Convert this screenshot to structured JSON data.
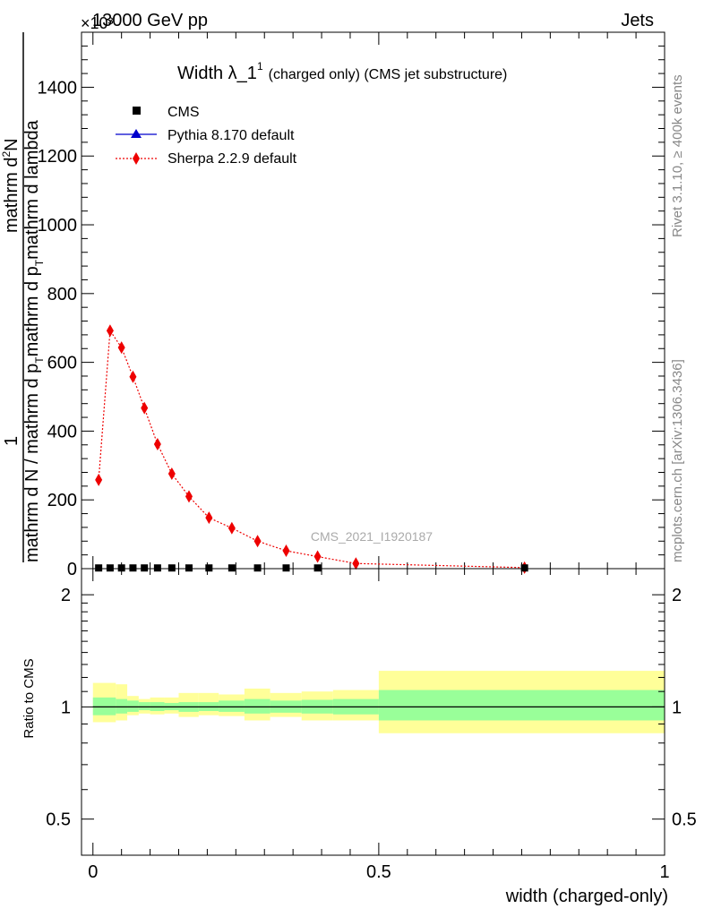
{
  "header": {
    "energy_label": "13000 GeV pp",
    "process_label": "Jets",
    "exponent_label": "×10³",
    "rivet_label": "Rivet 3.1.10, ≥ 400k events",
    "mcplots_label": "mcplots.cern.ch [arXiv:1306.3436]",
    "watermark": "CMS_2021_I1920187"
  },
  "chart_data": [
    {
      "type": "line",
      "title": "Width λ_1¹ (charged only) (CMS jet substructure)",
      "title_main": "Width λ_1",
      "title_sup": "1",
      "title_rest": "(charged only) (CMS jet substructure)",
      "ylabel_num_1": "1",
      "ylabel_num_2": "mathrm d",
      "ylabel_num_sup": "2",
      "ylabel_num_3": "N",
      "ylabel_den_1": "mathrm d N / mathrm d p",
      "ylabel_den_sub1": "T",
      "ylabel_den_2": "mathrm d p",
      "ylabel_den_sub2": "T",
      "ylabel_den_3": "mathrm d lambda",
      "xlabel": "",
      "ylim": [
        0,
        1560
      ],
      "xlim": [
        -0.02,
        1.0
      ],
      "yticks": [
        "0",
        "200",
        "400",
        "600",
        "800",
        "1000",
        "1200",
        "1400"
      ],
      "legend_position": "top-left",
      "series": [
        {
          "name": "CMS",
          "color": "#000000",
          "marker": "square",
          "x": [
            0.01,
            0.03,
            0.05,
            0.07,
            0.09,
            0.113,
            0.138,
            0.168,
            0.203,
            0.243,
            0.288,
            0.338,
            0.393,
            0.755
          ],
          "values": [
            2,
            2,
            2,
            2,
            2,
            2,
            2,
            2,
            2,
            2,
            2,
            2,
            2,
            2
          ]
        },
        {
          "name": "Pythia 8.170 default",
          "color": "#0000cc",
          "marker": "triangle",
          "x": [],
          "values": []
        },
        {
          "name": "Sherpa 2.2.9 default",
          "color": "#ee0000",
          "marker": "diamond",
          "x": [
            0.01,
            0.03,
            0.05,
            0.07,
            0.09,
            0.113,
            0.138,
            0.168,
            0.203,
            0.243,
            0.288,
            0.338,
            0.393,
            0.46,
            0.755
          ],
          "values": [
            258,
            692,
            643,
            558,
            467,
            362,
            276,
            210,
            148,
            118,
            80,
            52,
            35,
            15,
            3
          ]
        }
      ]
    },
    {
      "type": "area",
      "ylabel": "Ratio to CMS",
      "xlabel": "width (charged-only)",
      "xlim": [
        -0.02,
        1.0
      ],
      "ylim": [
        0.4,
        2.35
      ],
      "log_scale_y": true,
      "yticks": [
        "0.5",
        "1",
        "2"
      ],
      "xticks": [
        "0",
        "0.5",
        "1"
      ],
      "bins": [
        {
          "lo": 0.0,
          "hi": 0.04,
          "inner": [
            0.95,
            1.06
          ],
          "outer": [
            0.91,
            1.16
          ]
        },
        {
          "lo": 0.04,
          "hi": 0.06,
          "inner": [
            0.96,
            1.05
          ],
          "outer": [
            0.92,
            1.15
          ]
        },
        {
          "lo": 0.06,
          "hi": 0.08,
          "inner": [
            0.97,
            1.04
          ],
          "outer": [
            0.95,
            1.07
          ]
        },
        {
          "lo": 0.08,
          "hi": 0.1,
          "inner": [
            0.98,
            1.03
          ],
          "outer": [
            0.96,
            1.05
          ]
        },
        {
          "lo": 0.1,
          "hi": 0.125,
          "inner": [
            0.975,
            1.03
          ],
          "outer": [
            0.955,
            1.06
          ]
        },
        {
          "lo": 0.125,
          "hi": 0.15,
          "inner": [
            0.98,
            1.025
          ],
          "outer": [
            0.96,
            1.06
          ]
        },
        {
          "lo": 0.15,
          "hi": 0.185,
          "inner": [
            0.97,
            1.03
          ],
          "outer": [
            0.94,
            1.09
          ]
        },
        {
          "lo": 0.185,
          "hi": 0.22,
          "inner": [
            0.975,
            1.03
          ],
          "outer": [
            0.95,
            1.09
          ]
        },
        {
          "lo": 0.22,
          "hi": 0.265,
          "inner": [
            0.97,
            1.04
          ],
          "outer": [
            0.945,
            1.08
          ]
        },
        {
          "lo": 0.265,
          "hi": 0.31,
          "inner": [
            0.96,
            1.05
          ],
          "outer": [
            0.92,
            1.12
          ]
        },
        {
          "lo": 0.31,
          "hi": 0.365,
          "inner": [
            0.965,
            1.04
          ],
          "outer": [
            0.94,
            1.09
          ]
        },
        {
          "lo": 0.365,
          "hi": 0.42,
          "inner": [
            0.96,
            1.045
          ],
          "outer": [
            0.92,
            1.1
          ]
        },
        {
          "lo": 0.42,
          "hi": 0.5,
          "inner": [
            0.955,
            1.05
          ],
          "outer": [
            0.92,
            1.11
          ]
        },
        {
          "lo": 0.5,
          "hi": 1.0,
          "inner": [
            0.92,
            1.11
          ],
          "outer": [
            0.85,
            1.25
          ]
        }
      ],
      "colors": {
        "inner": "#99ff99",
        "outer": "#ffff99"
      }
    }
  ]
}
